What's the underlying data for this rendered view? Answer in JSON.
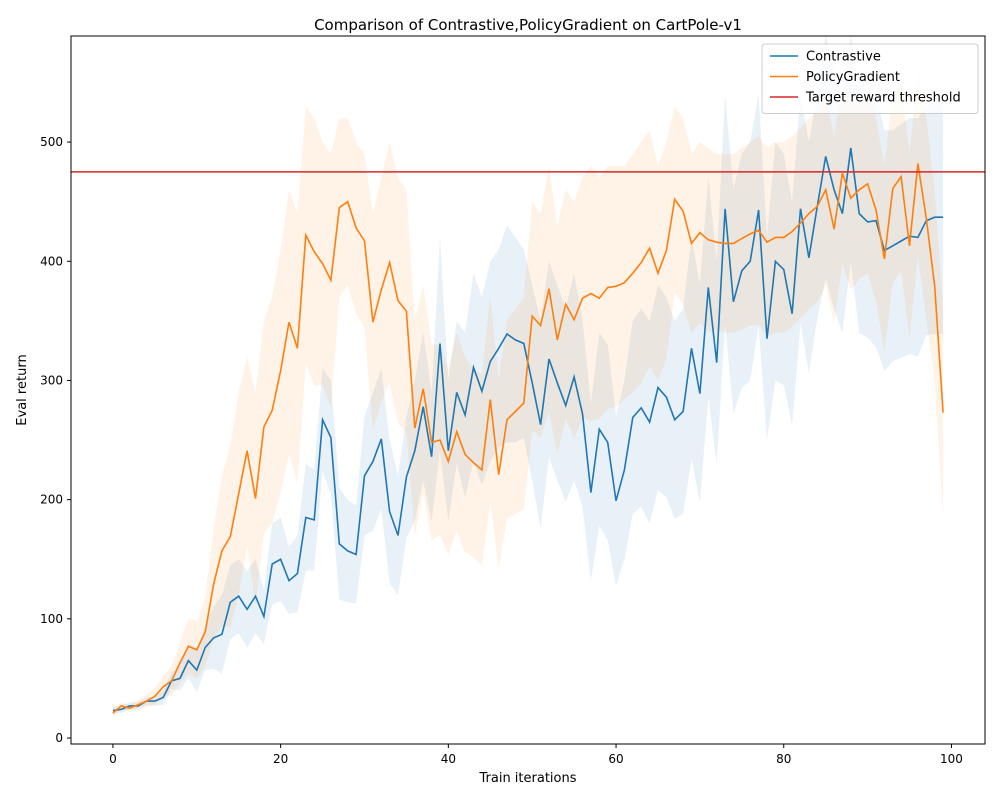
{
  "chart_data": {
    "type": "line",
    "title": "Comparison of Contrastive,PolicyGradient on CartPole-v1",
    "xlabel": "Train iterations",
    "ylabel": "Eval return",
    "xlim": [
      -5,
      104
    ],
    "ylim": [
      -5,
      589
    ],
    "xticks": [
      0,
      20,
      40,
      60,
      80,
      100
    ],
    "yticks": [
      0,
      100,
      200,
      300,
      400,
      500
    ],
    "legend_position": "top-right",
    "grid": false,
    "threshold": {
      "name": "Target reward threshold",
      "value": 475,
      "color": "#d62728"
    },
    "series": [
      {
        "name": "Contrastive",
        "color": "#1f77b4",
        "band_color": "#1f77b4",
        "values": [
          23,
          24,
          27,
          27,
          31,
          31,
          34,
          48,
          50,
          65,
          57,
          76,
          84,
          87,
          114,
          119,
          108,
          119,
          102,
          146,
          150,
          132,
          138,
          185,
          183,
          267,
          252,
          163,
          157,
          154,
          220,
          232,
          251,
          190,
          170,
          219,
          241,
          278,
          236,
          331,
          241,
          290,
          271,
          311,
          291,
          316,
          327,
          339,
          334,
          331,
          298,
          263,
          318,
          298,
          279,
          303,
          272,
          206,
          259,
          248,
          199,
          225,
          269,
          277,
          265,
          294,
          286,
          267,
          274,
          327,
          289,
          378,
          315,
          444,
          366,
          392,
          400,
          443,
          335,
          400,
          393,
          356,
          444,
          403,
          446,
          488,
          460,
          440,
          495,
          440,
          433,
          434,
          409,
          413,
          417,
          421,
          420,
          434,
          437,
          437
        ],
        "upper": [
          26,
          27,
          30,
          30,
          34,
          35,
          40,
          55,
          60,
          80,
          75,
          95,
          110,
          120,
          145,
          150,
          140,
          150,
          125,
          180,
          185,
          160,
          170,
          230,
          225,
          310,
          300,
          210,
          200,
          195,
          270,
          290,
          310,
          250,
          220,
          270,
          300,
          340,
          290,
          420,
          300,
          350,
          340,
          390,
          370,
          400,
          410,
          430,
          420,
          410,
          380,
          350,
          400,
          380,
          360,
          390,
          350,
          280,
          340,
          330,
          270,
          300,
          350,
          360,
          350,
          380,
          370,
          350,
          360,
          420,
          380,
          470,
          400,
          540,
          460,
          490,
          500,
          540,
          420,
          500,
          490,
          450,
          540,
          500,
          540,
          590,
          560,
          540,
          590,
          540,
          530,
          540,
          510,
          510,
          515,
          520,
          520,
          530,
          535,
          535
        ],
        "lower": [
          20,
          21,
          24,
          24,
          28,
          27,
          28,
          41,
          40,
          50,
          39,
          57,
          58,
          54,
          83,
          88,
          76,
          88,
          79,
          112,
          115,
          104,
          106,
          140,
          141,
          224,
          204,
          116,
          114,
          113,
          170,
          174,
          192,
          130,
          120,
          168,
          182,
          216,
          182,
          242,
          182,
          230,
          202,
          232,
          212,
          232,
          244,
          248,
          248,
          252,
          216,
          176,
          236,
          216,
          198,
          216,
          194,
          132,
          178,
          166,
          128,
          150,
          188,
          194,
          180,
          208,
          202,
          184,
          188,
          234,
          198,
          286,
          230,
          348,
          272,
          294,
          300,
          346,
          250,
          300,
          296,
          262,
          348,
          306,
          352,
          386,
          360,
          340,
          400,
          340,
          336,
          328,
          308,
          316,
          319,
          322,
          320,
          338,
          339,
          339
        ]
      },
      {
        "name": "PolicyGradient",
        "color": "#ff7f0e",
        "band_color": "#ff7f0e",
        "values": [
          21,
          27,
          25,
          28,
          31,
          35,
          43,
          48,
          63,
          77,
          74,
          89,
          129,
          157,
          169,
          205,
          241,
          201,
          261,
          275,
          308,
          349,
          327,
          422,
          408,
          398,
          384,
          445,
          450,
          428,
          417,
          349,
          376,
          399,
          367,
          358,
          260,
          293,
          248,
          250,
          232,
          257,
          238,
          231,
          225,
          284,
          221,
          267,
          274,
          281,
          354,
          346,
          377,
          334,
          364,
          351,
          369,
          373,
          369,
          378,
          379,
          382,
          390,
          399,
          411,
          390,
          409,
          452,
          442,
          415,
          424,
          418,
          416,
          415,
          415,
          419,
          423,
          426,
          416,
          420,
          420,
          425,
          432,
          440,
          446,
          460,
          427,
          474,
          453,
          460,
          465,
          443,
          402,
          461,
          471,
          413,
          482,
          436,
          379,
          273
        ],
        "upper": [
          24,
          30,
          28,
          32,
          36,
          42,
          52,
          60,
          80,
          100,
          98,
          118,
          175,
          220,
          245,
          290,
          320,
          290,
          350,
          370,
          410,
          460,
          440,
          530,
          520,
          500,
          490,
          520,
          520,
          500,
          490,
          440,
          470,
          500,
          470,
          460,
          350,
          380,
          330,
          330,
          310,
          340,
          320,
          310,
          305,
          370,
          300,
          350,
          360,
          370,
          450,
          440,
          480,
          430,
          460,
          450,
          470,
          480,
          470,
          480,
          480,
          480,
          490,
          500,
          510,
          480,
          500,
          530,
          520,
          490,
          500,
          495,
          490,
          490,
          490,
          495,
          500,
          505,
          495,
          500,
          500,
          505,
          512,
          520,
          526,
          540,
          505,
          550,
          530,
          535,
          540,
          520,
          480,
          540,
          550,
          490,
          560,
          520,
          460,
          360
        ],
        "lower": [
          18,
          24,
          22,
          24,
          26,
          28,
          34,
          36,
          46,
          54,
          50,
          60,
          83,
          94,
          93,
          120,
          162,
          112,
          172,
          180,
          206,
          238,
          214,
          314,
          296,
          296,
          278,
          370,
          380,
          356,
          344,
          258,
          282,
          298,
          264,
          256,
          170,
          206,
          166,
          170,
          154,
          174,
          156,
          152,
          145,
          198,
          142,
          184,
          188,
          192,
          258,
          252,
          274,
          238,
          268,
          252,
          268,
          266,
          268,
          276,
          278,
          284,
          290,
          298,
          312,
          300,
          318,
          374,
          364,
          340,
          348,
          341,
          342,
          340,
          340,
          343,
          346,
          347,
          337,
          340,
          340,
          345,
          352,
          360,
          366,
          380,
          349,
          398,
          376,
          385,
          390,
          366,
          324,
          382,
          392,
          336,
          404,
          352,
          298,
          186
        ]
      }
    ]
  }
}
